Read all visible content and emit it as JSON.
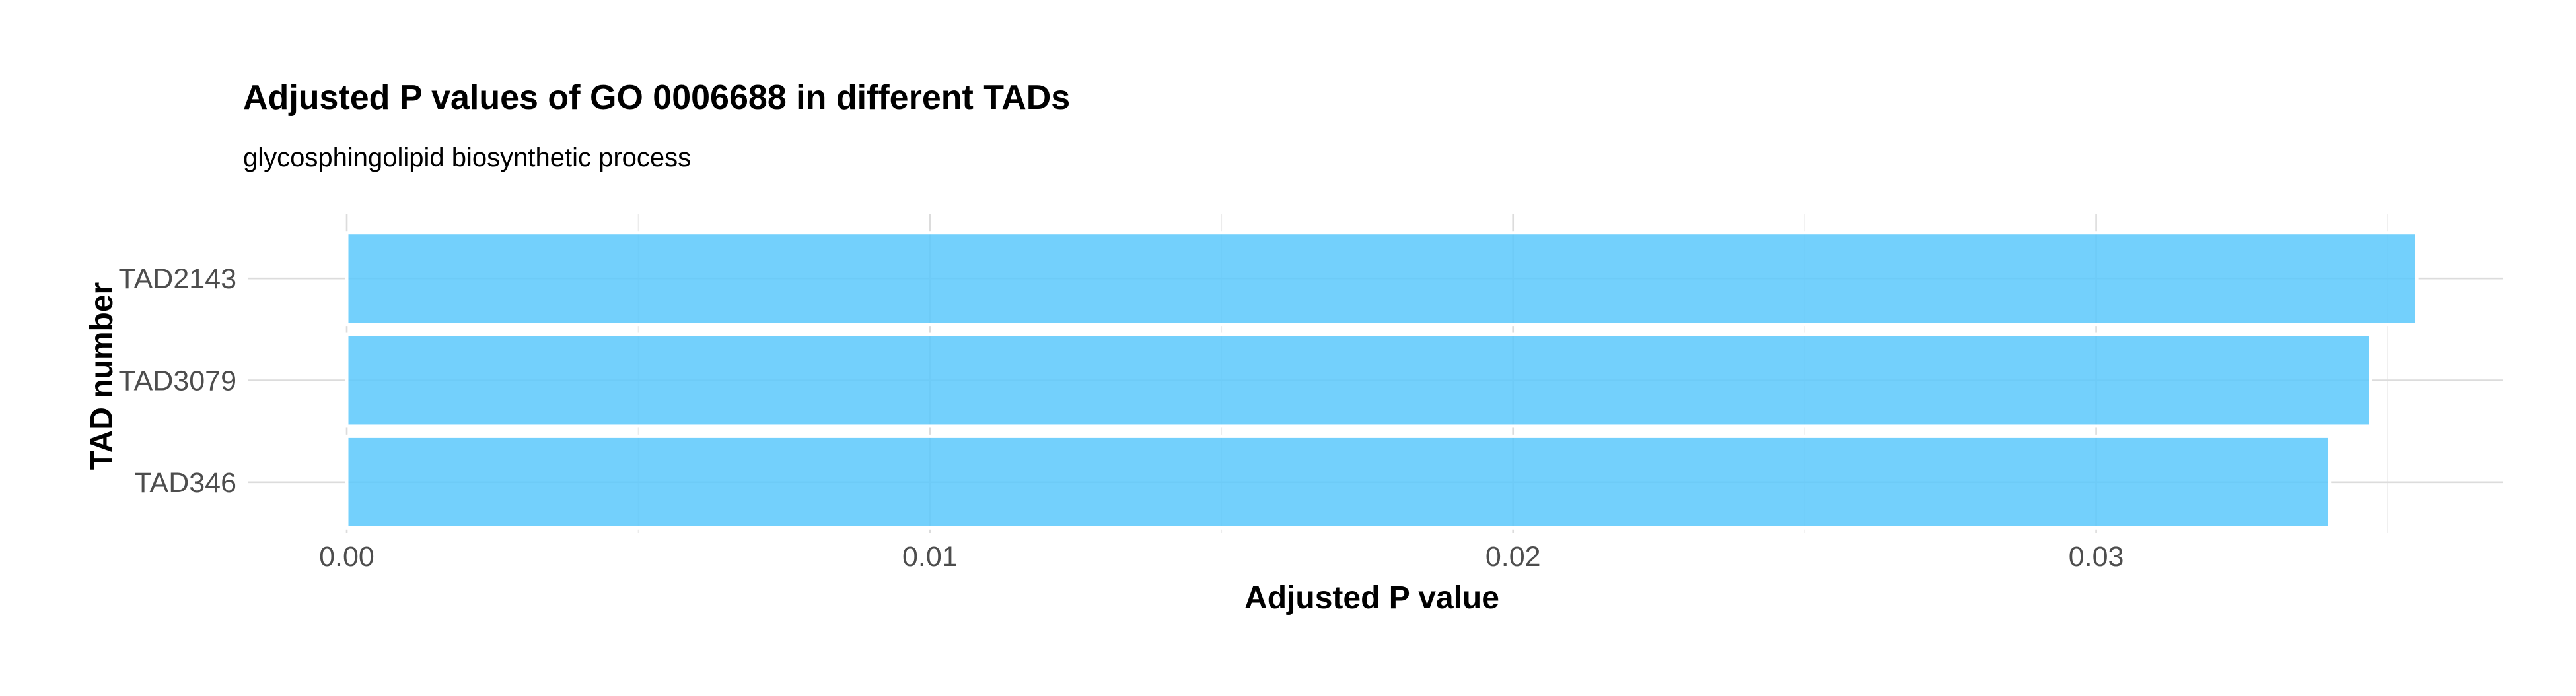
{
  "chart_data": {
    "type": "bar",
    "orientation": "horizontal",
    "title": "Adjusted P values of GO 0006688 in different TADs",
    "subtitle": "glycosphingolipid biosynthetic process",
    "xlabel": "Adjusted P value",
    "ylabel": "TAD number",
    "categories": [
      "TAD2143",
      "TAD3079",
      "TAD346"
    ],
    "values": [
      0.0355,
      0.0347,
      0.034
    ],
    "xlim": [
      0,
      0.0373
    ],
    "x_ticks": [
      0.0,
      0.01,
      0.02,
      0.03
    ],
    "x_tick_labels": [
      "0.00",
      "0.01",
      "0.02",
      "0.03"
    ],
    "x_minor_ticks": [
      0.005,
      0.015,
      0.025,
      0.035
    ],
    "grid": true,
    "legend": "none",
    "bar_color": "#5bc8fb",
    "bar_opacity": 0.85
  }
}
